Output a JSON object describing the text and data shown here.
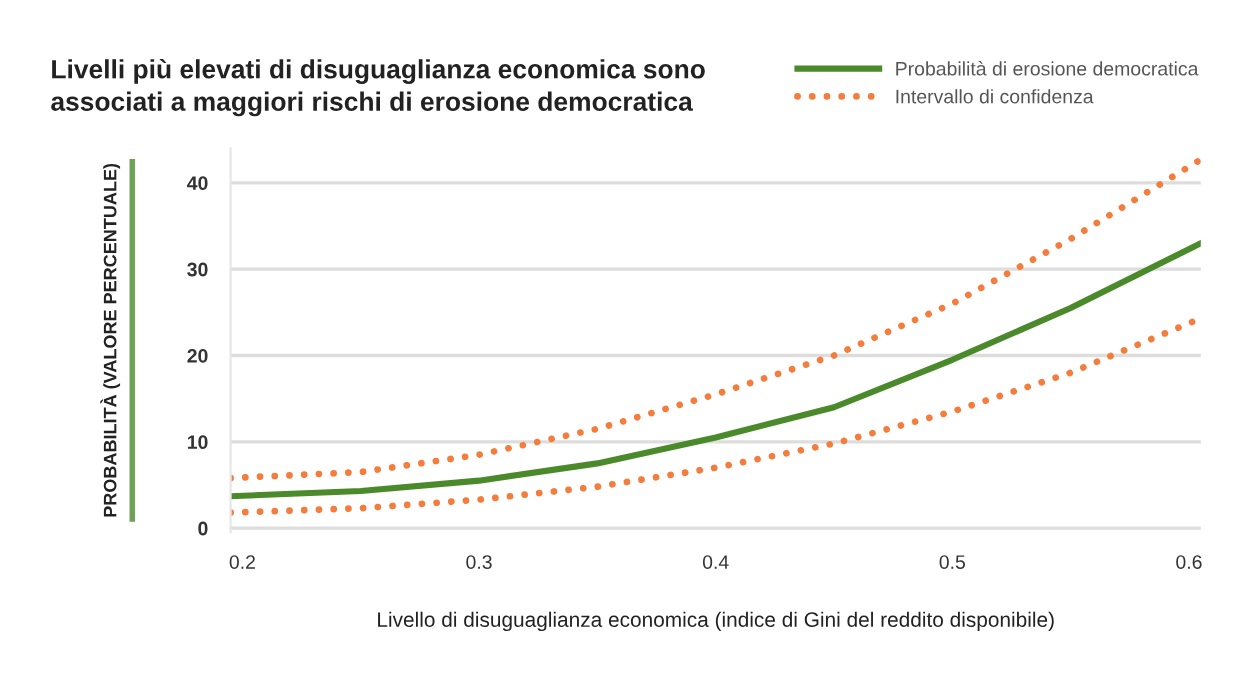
{
  "chart_data": {
    "type": "line",
    "title": "Livelli più elevati di disuguaglianza economica sono\nassociati a maggiori rischi di erosione democratica",
    "xlabel": "Livello di disuguaglianza economica (indice di Gini del reddito disponibile)",
    "ylabel": "PROBABILITÀ (VALORE PERCENTUALE)",
    "x": [
      0.195,
      0.25,
      0.3,
      0.35,
      0.4,
      0.45,
      0.5,
      0.55,
      0.605
    ],
    "series": [
      {
        "name": "Probabilità di erosione democratica",
        "color": "#4a8a2a",
        "line_style": "solid",
        "values": [
          3.7,
          4.3,
          5.5,
          7.5,
          10.5,
          14,
          19.5,
          25.5,
          33
        ]
      },
      {
        "name": "Intervallo di confidenza",
        "color": "#f47c3c",
        "line_style": "dotted",
        "values": [
          5.8,
          6.5,
          8.5,
          11.5,
          15.5,
          20,
          26,
          33.5,
          42.7
        ]
      },
      {
        "color": "#f47c3c",
        "line_style": "dotted",
        "values": [
          1.8,
          2.3,
          3.3,
          4.8,
          7,
          9.8,
          13.5,
          18,
          24.3
        ]
      }
    ],
    "xlim": [
      0.195,
      0.605
    ],
    "ylim": [
      -0.5,
      44
    ],
    "xticks": [
      0.2,
      0.3,
      0.4,
      0.5,
      0.6
    ],
    "yticks": [
      0,
      10,
      20,
      30,
      40
    ],
    "grid": "y",
    "legend": "top right"
  }
}
